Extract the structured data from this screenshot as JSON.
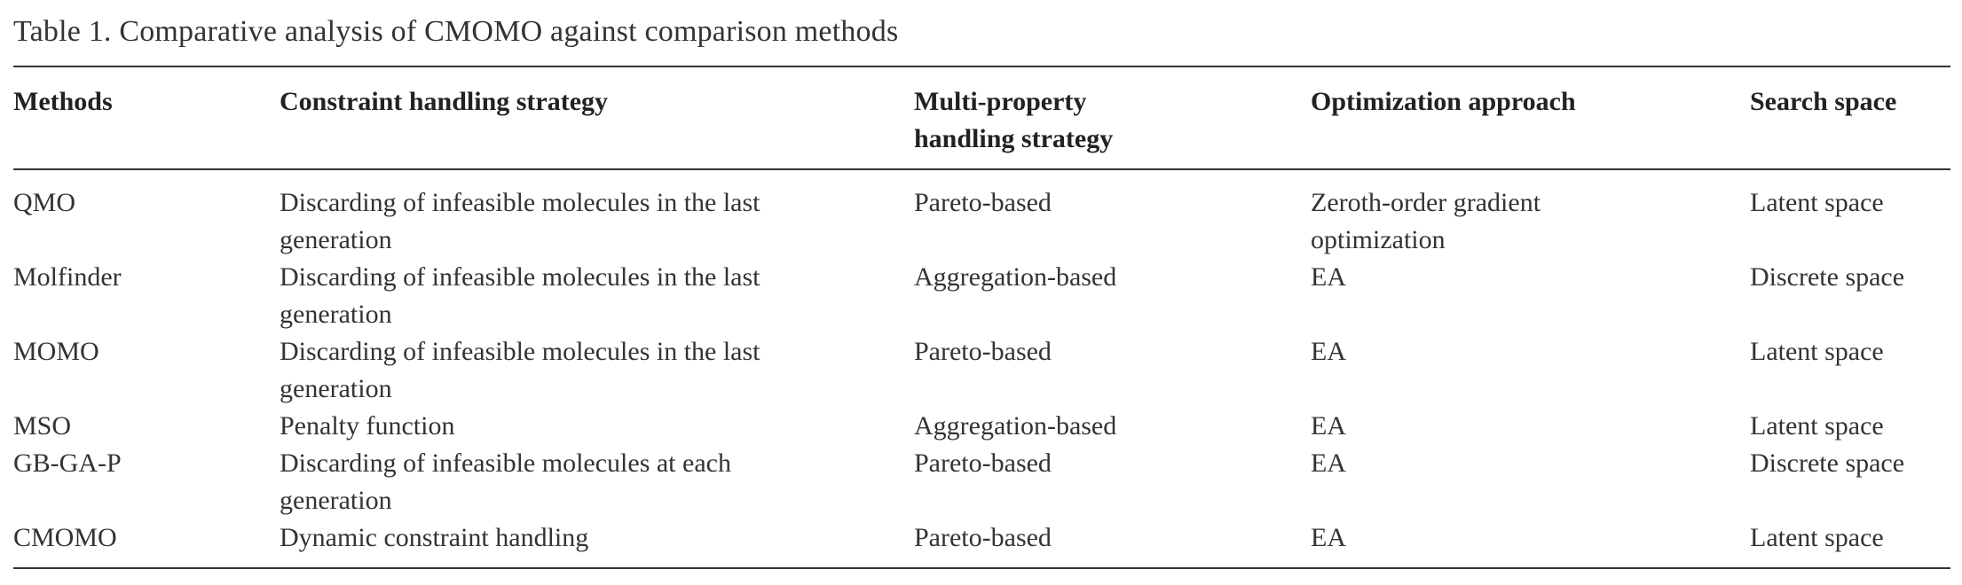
{
  "caption": "Table 1.  Comparative analysis of CMOMO against comparison methods",
  "table": {
    "headers": [
      "Methods",
      "Constraint handling strategy",
      "Multi-property handling strategy",
      "Optimization approach",
      "Search space"
    ],
    "rows": [
      [
        "QMO",
        "Discarding of infeasible molecules in the last generation",
        "Pareto-based",
        "Zeroth-order gradient optimization",
        "Latent space"
      ],
      [
        "Molfinder",
        "Discarding of infeasible molecules in the last generation",
        "Aggregation-based",
        "EA",
        "Discrete space"
      ],
      [
        "MOMO",
        "Discarding of infeasible molecules in the last generation",
        "Pareto-based",
        "EA",
        "Latent space"
      ],
      [
        "MSO",
        "Penalty function",
        "Aggregation-based",
        "EA",
        "Latent space"
      ],
      [
        "GB-GA-P",
        "Discarding of infeasible molecules at each generation",
        "Pareto-based",
        "EA",
        "Discrete space"
      ],
      [
        "CMOMO",
        "Dynamic constraint handling",
        "Pareto-based",
        "EA",
        "Latent space"
      ]
    ]
  }
}
